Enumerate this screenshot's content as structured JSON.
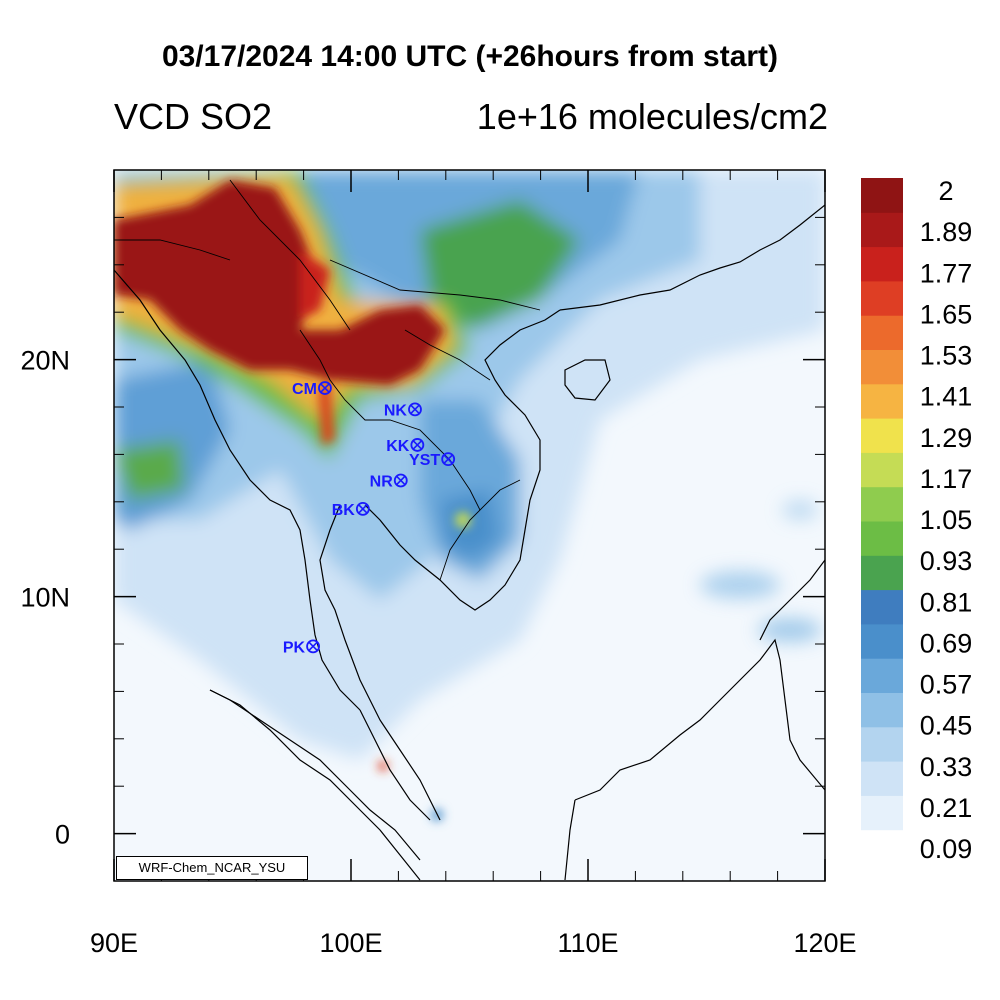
{
  "title": "03/17/2024 14:00 UTC (+26hours from start)",
  "variable_label": "VCD SO2",
  "units_label": "1e+16 molecules/cm2",
  "credit": "WRF-Chem_NCAR_YSU",
  "lon_ticks": [
    {
      "value": 90,
      "label": "90E"
    },
    {
      "value": 100,
      "label": "100E"
    },
    {
      "value": 110,
      "label": "110E"
    },
    {
      "value": 120,
      "label": "120E"
    }
  ],
  "lat_ticks": [
    {
      "value": 20,
      "label": "20N"
    },
    {
      "value": 10,
      "label": "10N"
    },
    {
      "value": 0,
      "label": "0"
    }
  ],
  "map_extent": {
    "lon": [
      90,
      120
    ],
    "lat": [
      -2,
      28
    ]
  },
  "colorbar_labels": [
    "2",
    "1.89",
    "1.77",
    "1.65",
    "1.53",
    "1.41",
    "1.29",
    "1.17",
    "1.05",
    "0.93",
    "0.81",
    "0.69",
    "0.57",
    "0.45",
    "0.33",
    "0.21",
    "0.09"
  ],
  "colorbar_colors": [
    "#ffffff",
    "#e6f1fb",
    "#cfe3f6",
    "#b3d4ef",
    "#8fc0e6",
    "#6aa8da",
    "#4a8fcb",
    "#3f7dbf",
    "#4aa34f",
    "#6cbd45",
    "#8fcc4e",
    "#c5dc55",
    "#f0e24c",
    "#f6b442",
    "#f28e38",
    "#ec6a2c",
    "#de3e24",
    "#c9211c",
    "#a91919",
    "#8f1414"
  ],
  "stations": [
    {
      "code": "CM",
      "lon": 98.9,
      "lat": 18.8
    },
    {
      "code": "NK",
      "lon": 102.7,
      "lon_label": "",
      "lat": 17.9
    },
    {
      "code": "KK",
      "lon": 102.8,
      "lat": 16.4
    },
    {
      "code": "YST",
      "lon": 104.1,
      "lat": 15.8
    },
    {
      "code": "NR",
      "lon": 102.1,
      "lat": 14.9
    },
    {
      "code": "BK",
      "lon": 100.5,
      "lat": 13.7
    },
    {
      "code": "PK",
      "lon": 98.4,
      "lat": 7.9
    }
  ]
}
